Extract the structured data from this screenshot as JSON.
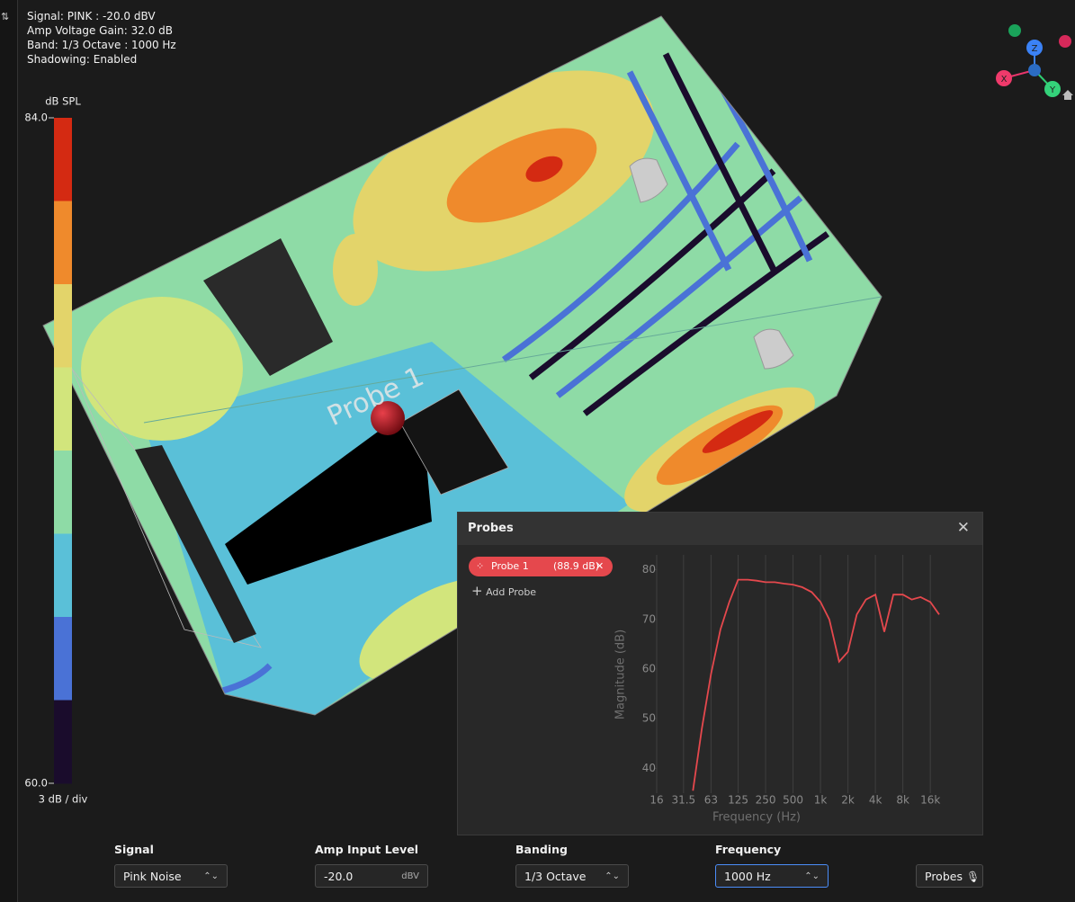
{
  "info": [
    "Signal: PINK : -20.0 dBV",
    "Amp Voltage Gain: 32.0 dB",
    "Band: 1/3 Octave : 1000 Hz",
    "Shadowing: Enabled"
  ],
  "colorbar": {
    "title": "dB SPL",
    "max_label": "84.0",
    "min_label": "60.0",
    "step_label": "3 dB / div",
    "colors": [
      "#d42a12",
      "#ef8a2c",
      "#e3d46a",
      "#d2e57c",
      "#8edba6",
      "#5ac0d8",
      "#4a72d6",
      "#1a0c2c"
    ]
  },
  "viewport": {
    "probe_label": "Probe 1",
    "axes": {
      "x": "X",
      "y": "Y",
      "z": "Z"
    }
  },
  "panel": {
    "title": "Probes",
    "probe": {
      "name": "Probe 1",
      "level": "(88.9 dB)"
    },
    "add": "Add Probe"
  },
  "chart_data": {
    "type": "line",
    "x_label": "Frequency (Hz)",
    "y_label": "Magnitude (dB)",
    "x": [
      40,
      50,
      63,
      80,
      100,
      125,
      160,
      200,
      250,
      315,
      400,
      500,
      630,
      800,
      1000,
      1250,
      1600,
      2000,
      2500,
      3150,
      4000,
      5000,
      6300,
      8000,
      10000,
      12500,
      16000,
      20000
    ],
    "series": [
      {
        "name": "Probe 1",
        "color": "#e5484d",
        "values": [
          35.5,
          48,
          59,
          68,
          73.5,
          78,
          78,
          77.8,
          77.5,
          77.5,
          77.2,
          77,
          76.5,
          75.5,
          73.5,
          70,
          61.5,
          63.5,
          71,
          74,
          75,
          67.5,
          75,
          75,
          74,
          74.5,
          73.5,
          71
        ]
      }
    ],
    "log_x": true,
    "xlim": [
      16,
      20000
    ],
    "ylim": [
      35,
      83
    ],
    "xticks": [
      16,
      31.5,
      63,
      125,
      250,
      500,
      {
        "value": 1000,
        "label": "1k"
      },
      {
        "value": 2000,
        "label": "2k"
      },
      {
        "value": 4000,
        "label": "4k"
      },
      {
        "value": 8000,
        "label": "8k"
      },
      {
        "value": 16000,
        "label": "16k"
      }
    ],
    "yticks": [
      40,
      50,
      60,
      70,
      80
    ],
    "grid": "x"
  },
  "controls": {
    "signal": {
      "label": "Signal",
      "value": "Pink Noise"
    },
    "amp": {
      "label": "Amp Input Level",
      "value": "-20.0",
      "unit": "dBV"
    },
    "banding": {
      "label": "Banding",
      "value": "1/3 Octave"
    },
    "frequency": {
      "label": "Frequency",
      "value": "1000 Hz"
    },
    "probes_button": "Probes"
  }
}
